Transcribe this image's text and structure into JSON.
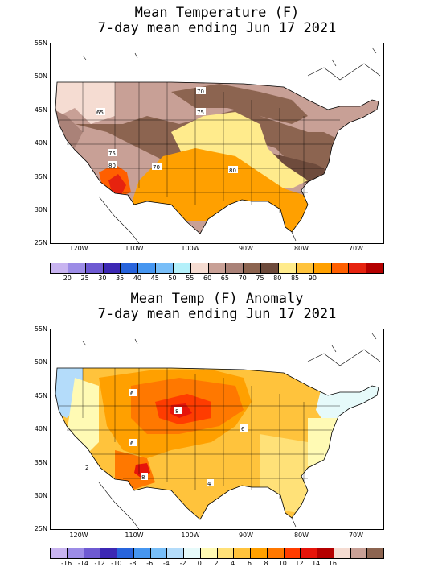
{
  "panel1": {
    "title_line1": "Mean Temperature (F)",
    "title_line2": "7-day mean ending Jun 17 2021",
    "contour_labels": [
      "65",
      "70",
      "75",
      "75",
      "80",
      "70",
      "80"
    ],
    "colorbar": {
      "colors": [
        "#c8b4f0",
        "#9c8ce6",
        "#6e5ad2",
        "#3c28b4",
        "#2864dc",
        "#4696f0",
        "#78bef8",
        "#b4f0fa",
        "#f5dcd2",
        "#c8a096",
        "#aa8278",
        "#8c6450",
        "#6e4b3c",
        "#ffeb8c",
        "#ffc33c",
        "#ffa000",
        "#ff5f00",
        "#e6230f",
        "#b40000"
      ],
      "tick_labels": [
        "20",
        "25",
        "30",
        "35",
        "40",
        "45",
        "50",
        "55",
        "60",
        "65",
        "70",
        "75",
        "80",
        "85",
        "90"
      ]
    }
  },
  "panel2": {
    "title_line1": "Mean Temp (F) Anomaly",
    "title_line2": "7-day mean ending Jun 17 2021",
    "contour_labels": [
      "6",
      "8",
      "6",
      "6",
      "8",
      "4",
      "2"
    ],
    "colorbar": {
      "colors": [
        "#c8b4f0",
        "#9c8ce6",
        "#6e5ad2",
        "#3c28b4",
        "#2864dc",
        "#4696f0",
        "#78bef8",
        "#b4dcfa",
        "#e6fafa",
        "#fffab4",
        "#ffe178",
        "#ffc33c",
        "#ffa000",
        "#ff7800",
        "#ff3c00",
        "#e6140a",
        "#b40000",
        "#f5dcd2",
        "#c8a096",
        "#8c6450"
      ],
      "tick_labels": [
        "-16",
        "-14",
        "-12",
        "-10",
        "-8",
        "-6",
        "-4",
        "-2",
        "0",
        "2",
        "4",
        "6",
        "8",
        "10",
        "12",
        "14",
        "16"
      ]
    }
  },
  "axes": {
    "lat_labels": [
      "55N",
      "50N",
      "45N",
      "40N",
      "35N",
      "30N",
      "25N"
    ],
    "lon_labels": [
      "120W",
      "110W",
      "100W",
      "90W",
      "80W",
      "70W"
    ]
  },
  "colors": {
    "ocean": "#ffffff",
    "land_border": "#000000"
  }
}
